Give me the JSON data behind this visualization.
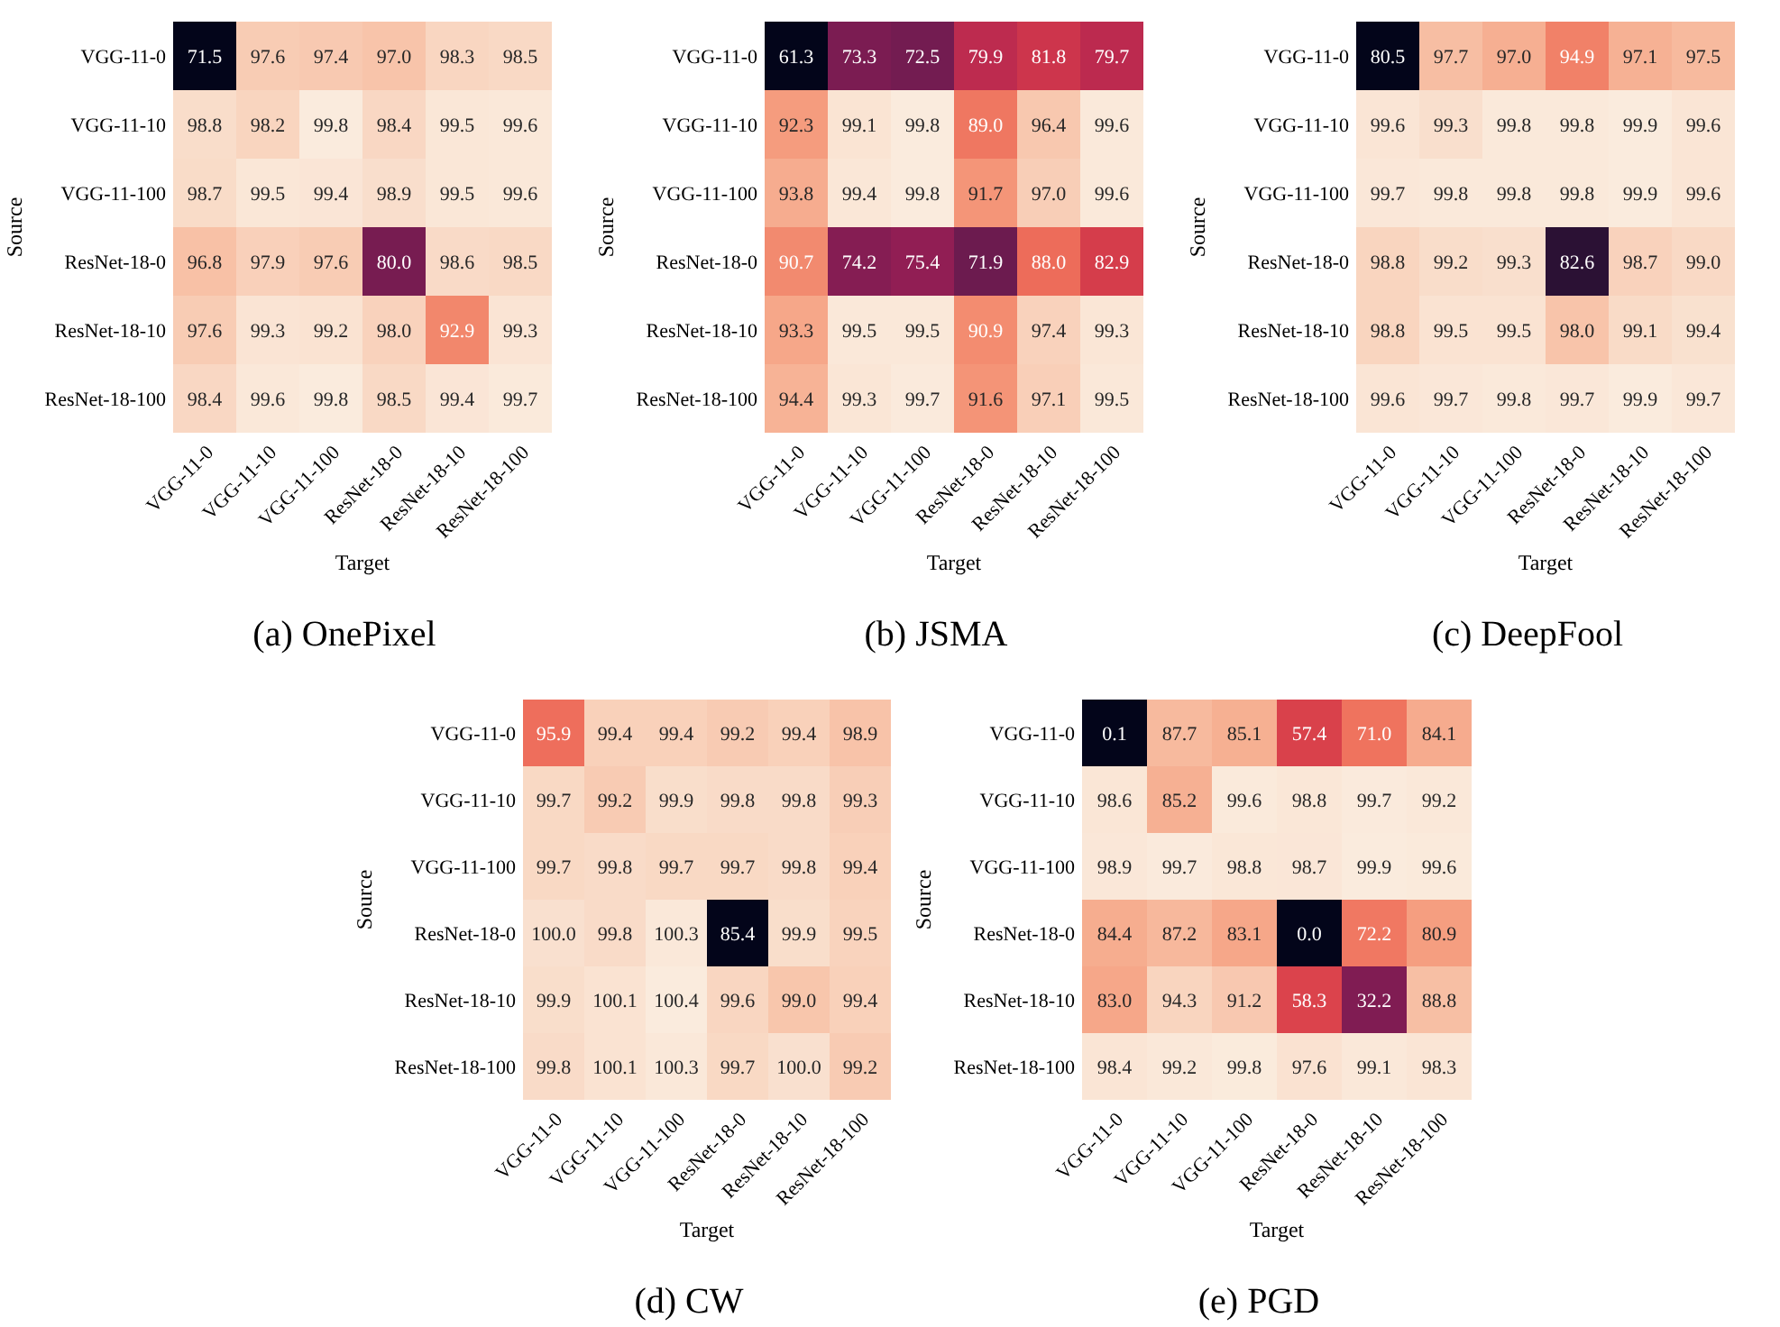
{
  "chart_data": [
    {
      "type": "heatmap",
      "title": "(a) OnePixel",
      "xlabel": "Target",
      "ylabel": "Source",
      "categories": [
        "VGG-11-0",
        "VGG-11-10",
        "VGG-11-100",
        "ResNet-18-0",
        "ResNet-18-10",
        "ResNet-18-100"
      ],
      "y_categories": [
        "VGG-11-0",
        "VGG-11-10",
        "VGG-11-100",
        "ResNet-18-0",
        "ResNet-18-10",
        "ResNet-18-100"
      ],
      "cells": [
        [
          71.5,
          97.6,
          97.4,
          97.0,
          98.3,
          98.5
        ],
        [
          98.8,
          98.2,
          99.8,
          98.4,
          99.5,
          99.6
        ],
        [
          98.7,
          99.5,
          99.4,
          98.9,
          99.5,
          99.6
        ],
        [
          96.8,
          97.9,
          97.6,
          80.0,
          98.6,
          98.5
        ],
        [
          97.6,
          99.3,
          99.2,
          98.0,
          92.9,
          99.3
        ],
        [
          98.4,
          99.6,
          99.8,
          98.5,
          99.4,
          99.7
        ]
      ],
      "cell_labels": [
        [
          "71.5",
          "97.6",
          "97.4",
          "97.0",
          "98.3",
          "98.5"
        ],
        [
          "98.8",
          "98.2",
          "99.8",
          "98.4",
          "99.5",
          "99.6"
        ],
        [
          "98.7",
          "99.5",
          "99.4",
          "98.9",
          "99.5",
          "99.6"
        ],
        [
          "96.8",
          "97.9",
          "97.6",
          "80.0",
          "98.6",
          "98.5"
        ],
        [
          "97.6",
          "99.3",
          "99.2",
          "98.0",
          "92.9",
          "99.3"
        ],
        [
          "98.4",
          "99.6",
          "99.8",
          "98.5",
          "99.4",
          "99.7"
        ]
      ]
    },
    {
      "type": "heatmap",
      "title": "(b) JSMA",
      "xlabel": "Target",
      "ylabel": "Source",
      "categories": [
        "VGG-11-0",
        "VGG-11-10",
        "VGG-11-100",
        "ResNet-18-0",
        "ResNet-18-10",
        "ResNet-18-100"
      ],
      "y_categories": [
        "VGG-11-0",
        "VGG-11-10",
        "VGG-11-100",
        "ResNet-18-0",
        "ResNet-18-10",
        "ResNet-18-100"
      ],
      "cells": [
        [
          61.3,
          73.3,
          72.5,
          79.9,
          81.8,
          79.7
        ],
        [
          92.3,
          99.1,
          99.8,
          89.0,
          96.4,
          99.6
        ],
        [
          93.8,
          99.4,
          99.8,
          91.7,
          97.0,
          99.6
        ],
        [
          90.7,
          74.2,
          75.4,
          71.9,
          88.0,
          82.9
        ],
        [
          93.3,
          99.5,
          99.5,
          90.9,
          97.4,
          99.3
        ],
        [
          94.4,
          99.3,
          99.7,
          91.6,
          97.1,
          99.5
        ]
      ],
      "cell_labels": [
        [
          "61.3",
          "73.3",
          "72.5",
          "79.9",
          "81.8",
          "79.7"
        ],
        [
          "92.3",
          "99.1",
          "99.8",
          "89.0",
          "96.4",
          "99.6"
        ],
        [
          "93.8",
          "99.4",
          "99.8",
          "91.7",
          "97.0",
          "99.6"
        ],
        [
          "90.7",
          "74.2",
          "75.4",
          "71.9",
          "88.0",
          "82.9"
        ],
        [
          "93.3",
          "99.5",
          "99.5",
          "90.9",
          "97.4",
          "99.3"
        ],
        [
          "94.4",
          "99.3",
          "99.7",
          "91.6",
          "97.1",
          "99.5"
        ]
      ]
    },
    {
      "type": "heatmap",
      "title": "(c) DeepFool",
      "xlabel": "Target",
      "ylabel": "Source",
      "categories": [
        "VGG-11-0",
        "VGG-11-10",
        "VGG-11-100",
        "ResNet-18-0",
        "ResNet-18-10",
        "ResNet-18-100"
      ],
      "y_categories": [
        "VGG-11-0",
        "VGG-11-10",
        "VGG-11-100",
        "ResNet-18-0",
        "ResNet-18-10",
        "ResNet-18-100"
      ],
      "cells": [
        [
          80.5,
          97.7,
          97.0,
          94.9,
          97.1,
          97.5
        ],
        [
          99.6,
          99.3,
          99.8,
          99.8,
          99.9,
          99.6
        ],
        [
          99.7,
          99.8,
          99.8,
          99.8,
          99.9,
          99.6
        ],
        [
          98.8,
          99.2,
          99.3,
          82.6,
          98.7,
          99.0
        ],
        [
          98.8,
          99.5,
          99.5,
          98.0,
          99.1,
          99.4
        ],
        [
          99.6,
          99.7,
          99.8,
          99.7,
          99.9,
          99.7
        ]
      ],
      "cell_labels": [
        [
          "80.5",
          "97.7",
          "97.0",
          "94.9",
          "97.1",
          "97.5"
        ],
        [
          "99.6",
          "99.3",
          "99.8",
          "99.8",
          "99.9",
          "99.6"
        ],
        [
          "99.7",
          "99.8",
          "99.8",
          "99.8",
          "99.9",
          "99.6"
        ],
        [
          "98.8",
          "99.2",
          "99.3",
          "82.6",
          "98.7",
          "99.0"
        ],
        [
          "98.8",
          "99.5",
          "99.5",
          "98.0",
          "99.1",
          "99.4"
        ],
        [
          "99.6",
          "99.7",
          "99.8",
          "99.7",
          "99.9",
          "99.7"
        ]
      ]
    },
    {
      "type": "heatmap",
      "title": "(d) CW",
      "xlabel": "Target",
      "ylabel": "Source",
      "categories": [
        "VGG-11-0",
        "VGG-11-10",
        "VGG-11-100",
        "ResNet-18-0",
        "ResNet-18-10",
        "ResNet-18-100"
      ],
      "y_categories": [
        "VGG-11-0",
        "VGG-11-10",
        "VGG-11-100",
        "ResNet-18-0",
        "ResNet-18-10",
        "ResNet-18-100"
      ],
      "cells": [
        [
          95.9,
          99.4,
          99.4,
          99.2,
          99.4,
          98.9
        ],
        [
          99.7,
          99.2,
          99.9,
          99.8,
          99.8,
          99.3
        ],
        [
          99.7,
          99.8,
          99.7,
          99.7,
          99.8,
          99.4
        ],
        [
          100.0,
          99.8,
          100.3,
          85.4,
          99.9,
          99.5
        ],
        [
          99.9,
          100.1,
          100.4,
          99.6,
          99.0,
          99.4
        ],
        [
          99.8,
          100.1,
          100.3,
          99.7,
          100.0,
          99.2
        ]
      ],
      "cell_labels": [
        [
          "95.9",
          "99.4",
          "99.4",
          "99.2",
          "99.4",
          "98.9"
        ],
        [
          "99.7",
          "99.2",
          "99.9",
          "99.8",
          "99.8",
          "99.3"
        ],
        [
          "99.7",
          "99.8",
          "99.7",
          "99.7",
          "99.8",
          "99.4"
        ],
        [
          "100.0",
          "99.8",
          "100.3",
          "85.4",
          "99.9",
          "99.5"
        ],
        [
          "99.9",
          "100.1",
          "100.4",
          "99.6",
          "99.0",
          "99.4"
        ],
        [
          "99.8",
          "100.1",
          "100.3",
          "99.7",
          "100.0",
          "99.2"
        ]
      ]
    },
    {
      "type": "heatmap",
      "title": "(e) PGD",
      "xlabel": "Target",
      "ylabel": "Source",
      "categories": [
        "VGG-11-0",
        "VGG-11-10",
        "VGG-11-100",
        "ResNet-18-0",
        "ResNet-18-10",
        "ResNet-18-100"
      ],
      "y_categories": [
        "VGG-11-0",
        "VGG-11-10",
        "VGG-11-100",
        "ResNet-18-0",
        "ResNet-18-10",
        "ResNet-18-100"
      ],
      "cells": [
        [
          0.1,
          87.7,
          85.1,
          57.4,
          71.0,
          84.1
        ],
        [
          98.6,
          85.2,
          99.6,
          98.8,
          99.7,
          99.2
        ],
        [
          98.9,
          99.7,
          98.8,
          98.7,
          99.9,
          99.6
        ],
        [
          84.4,
          87.2,
          83.1,
          0.0,
          72.2,
          80.9
        ],
        [
          83.0,
          94.3,
          91.2,
          58.3,
          32.2,
          88.8
        ],
        [
          98.4,
          99.2,
          99.8,
          97.6,
          99.1,
          98.3
        ]
      ],
      "cell_labels": [
        [
          "0.1",
          "87.7",
          "85.1",
          "57.4",
          "71.0",
          "84.1"
        ],
        [
          "98.6",
          "85.2",
          "99.6",
          "98.8",
          "99.7",
          "99.2"
        ],
        [
          "98.9",
          "99.7",
          "98.8",
          "98.7",
          "99.9",
          "99.6"
        ],
        [
          "84.4",
          "87.2",
          "83.1",
          "0.0",
          "72.2",
          "80.9"
        ],
        [
          "83.0",
          "94.3",
          "91.2",
          "58.3",
          "32.2",
          "88.8"
        ],
        [
          "98.4",
          "99.2",
          "99.8",
          "97.6",
          "99.1",
          "98.3"
        ]
      ]
    }
  ]
}
